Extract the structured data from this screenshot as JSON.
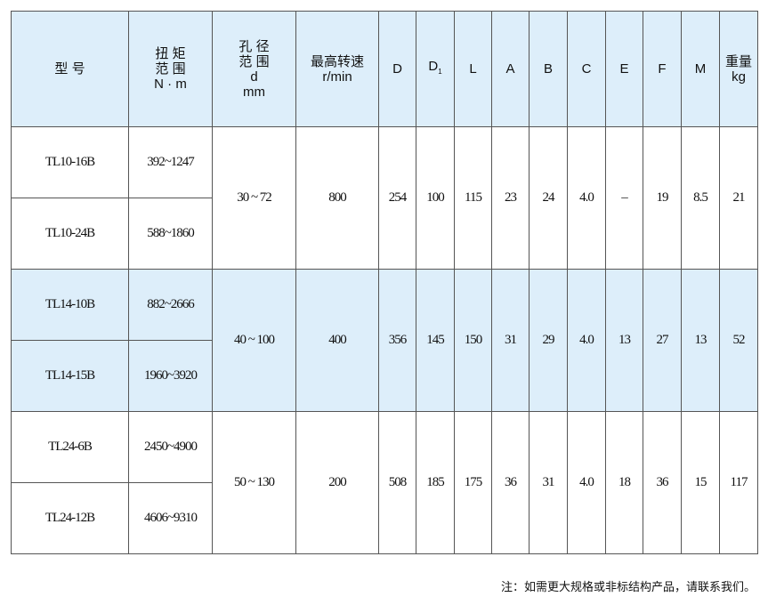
{
  "headers": {
    "model": "型 号",
    "torque": [
      "扭 矩",
      "范 围",
      "N · m"
    ],
    "bore": [
      "孔 径",
      "范 围",
      "d",
      "mm"
    ],
    "speed": [
      "最高转速",
      "r/min"
    ],
    "D": "D",
    "D1": "D",
    "D1_sub": "1",
    "L": "L",
    "A": "A",
    "B": "B",
    "C": "C",
    "E": "E",
    "F": "F",
    "M": "M",
    "weight": [
      "重量",
      "kg"
    ]
  },
  "groups": [
    {
      "rows": [
        {
          "model": "TL10-16B",
          "torque": "392~1247"
        },
        {
          "model": "TL10-24B",
          "torque": "588~1860"
        }
      ],
      "bore": "30 ~  72",
      "speed": "800",
      "D": "254",
      "D1": "100",
      "L": "115",
      "A": "23",
      "B": "24",
      "C": "4.0",
      "E": "–",
      "F": "19",
      "M": "8.5",
      "weight": "21"
    },
    {
      "rows": [
        {
          "model": "TL14-10B",
          "torque": "882~2666"
        },
        {
          "model": "TL14-15B",
          "torque": "1960~3920"
        }
      ],
      "bore": "40 ~ 100",
      "speed": "400",
      "D": "356",
      "D1": "145",
      "L": "150",
      "A": "31",
      "B": "29",
      "C": "4.0",
      "E": "13",
      "F": "27",
      "M": "13",
      "weight": "52"
    },
    {
      "rows": [
        {
          "model": "TL24-6B",
          "torque": "2450~4900"
        },
        {
          "model": "TL24-12B",
          "torque": "4606~9310"
        }
      ],
      "bore": "50 ~ 130",
      "speed": "200",
      "D": "508",
      "D1": "185",
      "L": "175",
      "A": "36",
      "B": "31",
      "C": "4.0",
      "E": "18",
      "F": "36",
      "M": "15",
      "weight": "117"
    }
  ],
  "note": "注：如需更大规格或非标结构产品，请联系我们。",
  "colors": {
    "header_bg": "#ddeefa",
    "border": "#555555"
  }
}
